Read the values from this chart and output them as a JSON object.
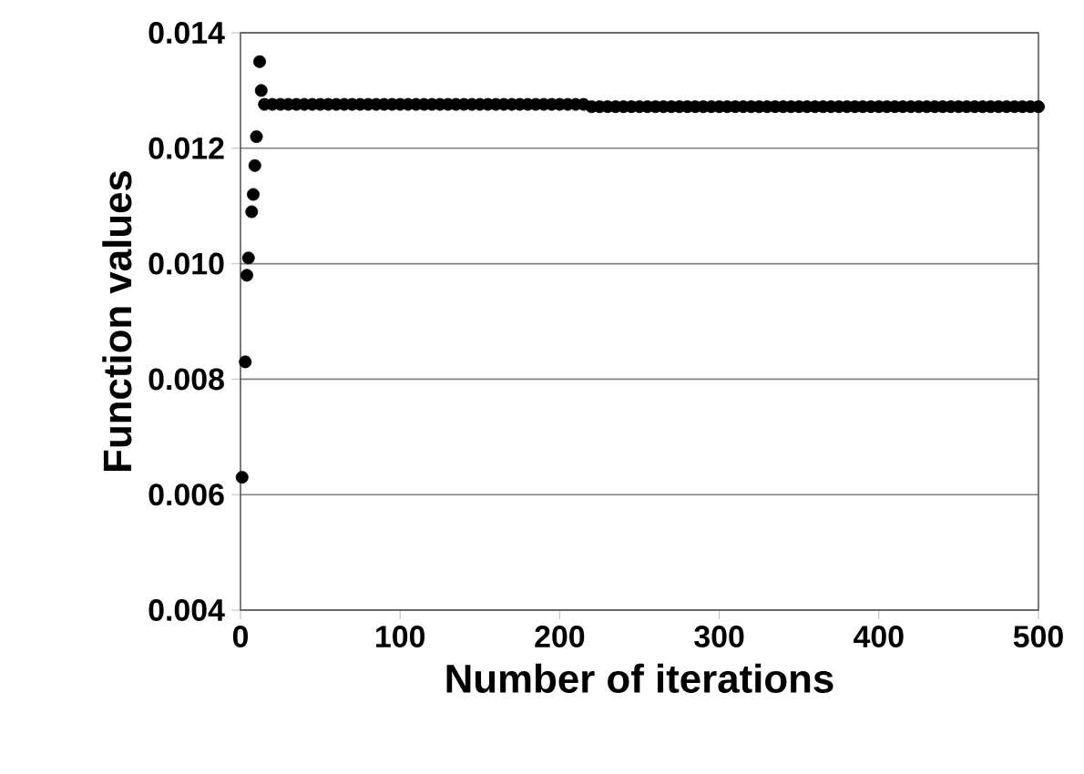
{
  "chart_data": {
    "type": "scatter",
    "xlabel": "Number of iterations",
    "ylabel": "Function values",
    "x": [
      1,
      3,
      4,
      5,
      7,
      8,
      9,
      10,
      12,
      13,
      15,
      20,
      25,
      30,
      35,
      40,
      45,
      50,
      55,
      60,
      65,
      70,
      75,
      80,
      85,
      90,
      95,
      100,
      105,
      110,
      115,
      120,
      125,
      130,
      135,
      140,
      145,
      150,
      155,
      160,
      165,
      170,
      175,
      180,
      185,
      190,
      195,
      200,
      205,
      210,
      215,
      220,
      225,
      230,
      235,
      240,
      245,
      250,
      255,
      260,
      265,
      270,
      275,
      280,
      285,
      290,
      295,
      300,
      305,
      310,
      315,
      320,
      325,
      330,
      335,
      340,
      345,
      350,
      355,
      360,
      365,
      370,
      375,
      380,
      385,
      390,
      395,
      400,
      405,
      410,
      415,
      420,
      425,
      430,
      435,
      440,
      445,
      450,
      455,
      460,
      465,
      470,
      475,
      480,
      485,
      490,
      495,
      500
    ],
    "values": [
      0.0063,
      0.0083,
      0.0098,
      0.0101,
      0.0109,
      0.0112,
      0.0117,
      0.0122,
      0.0135,
      0.013,
      0.01276,
      0.01276,
      0.01276,
      0.01276,
      0.01276,
      0.01276,
      0.01276,
      0.01276,
      0.01276,
      0.01276,
      0.01276,
      0.01276,
      0.01276,
      0.01276,
      0.01276,
      0.01276,
      0.01276,
      0.01276,
      0.01276,
      0.01276,
      0.01276,
      0.01276,
      0.01276,
      0.01276,
      0.01276,
      0.01276,
      0.01276,
      0.01276,
      0.01276,
      0.01276,
      0.01276,
      0.01276,
      0.01276,
      0.01276,
      0.01276,
      0.01276,
      0.01276,
      0.01276,
      0.01276,
      0.01276,
      0.01276,
      0.01272,
      0.01272,
      0.01272,
      0.01272,
      0.01272,
      0.01272,
      0.01272,
      0.01272,
      0.01272,
      0.01272,
      0.01272,
      0.01272,
      0.01272,
      0.01272,
      0.01272,
      0.01272,
      0.01272,
      0.01272,
      0.01272,
      0.01272,
      0.01272,
      0.01272,
      0.01272,
      0.01272,
      0.01272,
      0.01272,
      0.01272,
      0.01272,
      0.01272,
      0.01272,
      0.01272,
      0.01272,
      0.01272,
      0.01272,
      0.01272,
      0.01272,
      0.01272,
      0.01272,
      0.01272,
      0.01272,
      0.01272,
      0.01272,
      0.01272,
      0.01272,
      0.01272,
      0.01272,
      0.01272,
      0.01272,
      0.01272,
      0.01272,
      0.01272,
      0.01272,
      0.01272,
      0.01272,
      0.01272,
      0.01272,
      0.01272
    ],
    "color": "#000000",
    "grid": "y",
    "xlim": [
      0,
      500
    ],
    "xticks": [
      0,
      100,
      200,
      300,
      400,
      500
    ],
    "ylim": [
      0.004,
      0.014
    ],
    "yticks": [
      0.004,
      0.006,
      0.008,
      {
        "value": 0.01,
        "label": "0.010"
      },
      0.012,
      0.014
    ]
  }
}
